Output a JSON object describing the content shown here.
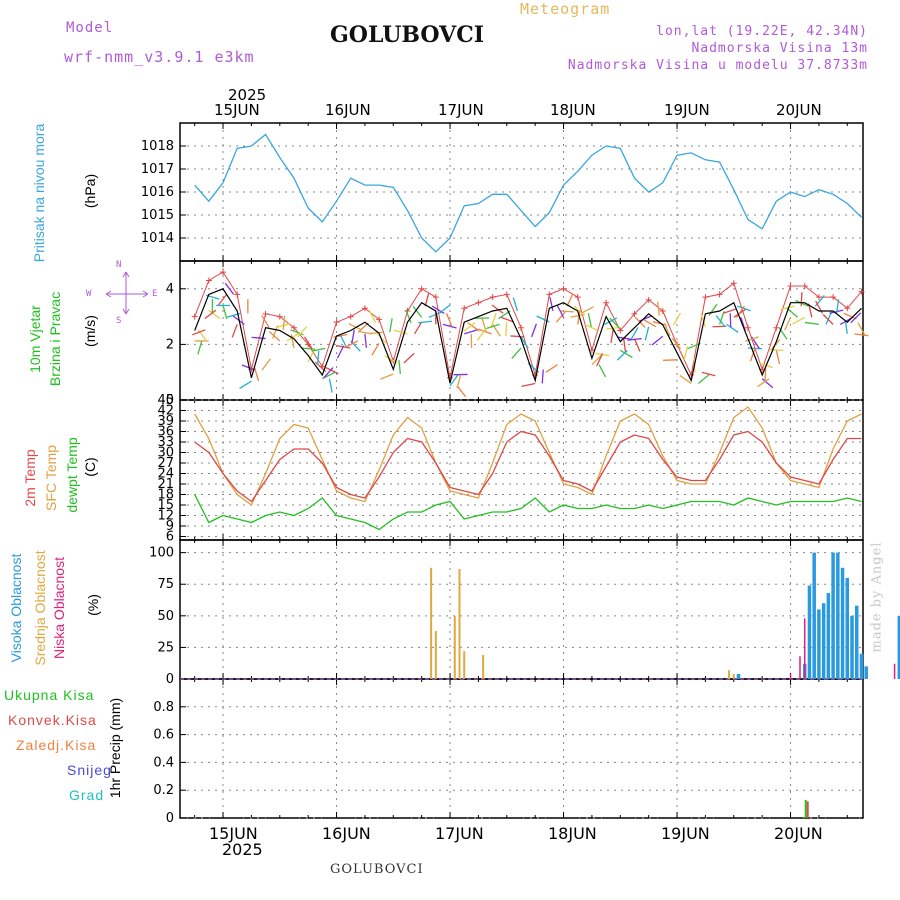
{
  "header": {
    "model_label": "Model",
    "model_name": "wrf-nmm_v3.9.1 e3km",
    "title": "GOLUBOVCI",
    "meteogram_label": "Meteogram",
    "coords": "lon,lat (19.22E, 42.34N)",
    "altitude": "Nadmorska Visina 13m",
    "model_altitude": "Nadmorska Visina u modelu 37.8733m"
  },
  "footer": {
    "station": "GOLUBOVCI",
    "watermark": "made by Angel"
  },
  "time_axis": {
    "year": "2025",
    "days": [
      "15JUN",
      "16JUN",
      "17JUN",
      "18JUN",
      "19JUN",
      "20JUN"
    ]
  },
  "panel_labels": {
    "pressure": {
      "name": "Pritisak na nivou mora",
      "unit": "(hPa)"
    },
    "wind": {
      "line1": "10m Vjetar",
      "line2": "Brzina i Pravac",
      "unit": "(m/s)",
      "compass_n": "N",
      "compass_w": "W",
      "compass_e": "E",
      "compass_s": "S"
    },
    "temp": {
      "line1": "2m Temp",
      "line2": "SFC Temp",
      "line3": "dewpt Temp",
      "unit": "(C)"
    },
    "cloud": {
      "line1": "Visoka Oblacnost",
      "line2": "Srednja Oblacnost",
      "line3": "Niska Oblacnost",
      "unit": "(%)"
    },
    "precip": {
      "l1": "Ukupna Kisa",
      "l2": "Konvek.Kisa",
      "l3": "Zaledj.Kisa",
      "l4": "Snijeg",
      "l5": "Grad",
      "unit": "1hr Precip (mm)"
    }
  },
  "colors": {
    "pressure": "#3aa6e0",
    "wind_speed": "#000000",
    "gust": "#e04848",
    "temp2m": "#e04848",
    "sfc": "#e0a040",
    "dew": "#20c020",
    "cloud_high": "#2a9ae0",
    "cloud_mid": "#e0a840",
    "cloud_low": "#e0207a",
    "precip_total": "#20c020",
    "precip_conv": "#e04848",
    "precip_freeze": "#f08040",
    "precip_snow": "#4848e0",
    "precip_hail": "#20c0c0"
  },
  "chart_data": [
    {
      "type": "line",
      "title": "Pritisak na nivou mora",
      "ylabel": "(hPa)",
      "ylim": [
        1013,
        1019
      ],
      "yticks": [
        1014,
        1015,
        1016,
        1017,
        1018
      ],
      "xlim_days": [
        0,
        6
      ],
      "x_day_offset_hours": [
        0,
        3,
        6,
        9,
        12,
        15,
        18,
        21,
        24,
        27,
        30,
        33,
        36,
        39,
        42,
        45,
        48,
        51,
        54,
        57,
        60,
        63,
        66,
        69,
        72,
        75,
        78,
        81,
        84,
        87,
        90,
        93,
        96,
        99,
        102,
        105,
        108,
        111,
        114,
        117,
        120,
        123,
        126,
        129,
        132,
        135,
        138,
        141
      ],
      "series": [
        {
          "name": "pressure",
          "values": [
            1016.3,
            1015.6,
            1016.4,
            1017.9,
            1018.0,
            1018.5,
            1017.5,
            1016.6,
            1015.3,
            1014.7,
            1015.6,
            1016.6,
            1016.3,
            1016.3,
            1016.2,
            1015.2,
            1014.0,
            1013.4,
            1014.0,
            1015.4,
            1015.5,
            1015.9,
            1015.9,
            1015.2,
            1014.5,
            1015.1,
            1016.3,
            1016.9,
            1017.6,
            1018.0,
            1017.9,
            1016.6,
            1016.0,
            1016.4,
            1017.6,
            1017.7,
            1017.4,
            1017.3,
            1016.1,
            1014.8,
            1014.4,
            1015.6,
            1016.0,
            1015.8,
            1016.1,
            1015.9,
            1015.5,
            1014.9
          ]
        }
      ]
    },
    {
      "type": "line",
      "title": "10m Vjetar Brzina i Pravac",
      "ylabel": "(m/s)",
      "ylim": [
        0,
        5
      ],
      "yticks": [
        0,
        2,
        4
      ],
      "series": [
        {
          "name": "wind speed",
          "values": [
            2.5,
            3.8,
            4.0,
            3.2,
            0.8,
            2.6,
            2.5,
            2.2,
            1.6,
            0.9,
            2.3,
            2.5,
            2.8,
            2.4,
            1.1,
            2.8,
            3.5,
            3.2,
            0.6,
            2.8,
            3.0,
            3.2,
            3.3,
            2.2,
            0.7,
            3.3,
            3.5,
            3.2,
            1.5,
            3.0,
            2.1,
            2.6,
            3.1,
            2.7,
            1.7,
            0.7,
            3.1,
            3.2,
            3.5,
            2.2,
            0.9,
            2.1,
            3.5,
            3.5,
            3.2,
            3.2,
            2.8,
            3.3
          ]
        },
        {
          "name": "gust",
          "values": [
            3.0,
            4.3,
            4.6,
            3.8,
            1.1,
            3.1,
            3.0,
            2.6,
            2.0,
            1.2,
            2.8,
            3.0,
            3.3,
            2.9,
            1.4,
            3.2,
            4.0,
            3.7,
            0.8,
            3.3,
            3.5,
            3.7,
            3.8,
            2.6,
            0.9,
            3.8,
            4.0,
            3.7,
            1.8,
            3.5,
            2.5,
            3.1,
            3.6,
            3.2,
            2.0,
            0.9,
            3.7,
            3.8,
            4.2,
            2.6,
            1.1,
            2.6,
            4.1,
            4.1,
            3.7,
            3.7,
            3.3,
            3.9
          ]
        }
      ]
    },
    {
      "type": "line",
      "title": "2m Temp / SFC Temp / dewpt Temp",
      "ylabel": "(C)",
      "ylim": [
        5,
        45
      ],
      "yticks": [
        6,
        9,
        12,
        15,
        18,
        21,
        24,
        27,
        30,
        33,
        36,
        39,
        42,
        45
      ],
      "series": [
        {
          "name": "2m Temp",
          "values": [
            33,
            30,
            24,
            19,
            16,
            22,
            28,
            31,
            31,
            27,
            20,
            18,
            17,
            23,
            30,
            34,
            33,
            27,
            20,
            19,
            18,
            24,
            33,
            36,
            35,
            29,
            22,
            21,
            19,
            26,
            33,
            35,
            34,
            28,
            23,
            22,
            22,
            28,
            35,
            36,
            33,
            27,
            23,
            22,
            21,
            28,
            34,
            34
          ]
        },
        {
          "name": "SFC Temp",
          "values": [
            41,
            34,
            24,
            18,
            15,
            24,
            34,
            38,
            37,
            28,
            19,
            17,
            16,
            25,
            35,
            40,
            37,
            27,
            19,
            18,
            17,
            27,
            38,
            41,
            39,
            30,
            21,
            20,
            18,
            29,
            39,
            41,
            38,
            29,
            22,
            21,
            21,
            30,
            40,
            43,
            37,
            27,
            22,
            21,
            20,
            31,
            39,
            41
          ]
        },
        {
          "name": "dewpt Temp",
          "values": [
            18,
            10,
            12,
            11,
            10,
            12,
            13,
            12,
            14,
            17,
            12,
            11,
            10,
            8,
            11,
            13,
            13,
            15,
            16,
            11,
            12,
            13,
            13,
            14,
            17,
            13,
            15,
            14,
            14,
            15,
            14,
            14,
            15,
            14,
            15,
            16,
            16,
            16,
            15,
            17,
            16,
            15,
            16,
            16,
            16,
            16,
            17,
            16
          ]
        }
      ]
    },
    {
      "type": "bar",
      "title": "Oblacnost",
      "ylabel": "(%)",
      "ylim": [
        0,
        110
      ],
      "yticks": [
        0,
        25,
        50,
        75,
        100
      ],
      "series": [
        {
          "name": "Srednja Oblacnost",
          "hours": [
            44,
            45,
            49,
            50,
            51,
            55,
            107,
            108
          ],
          "values": [
            88,
            38,
            50,
            87,
            22,
            19,
            7,
            4
          ]
        },
        {
          "name": "Visoka Oblacnost",
          "hours": [
            109,
            123,
            124,
            125,
            126,
            127,
            128,
            129,
            130,
            131,
            132,
            133,
            134,
            135,
            136,
            143
          ],
          "values": [
            4,
            12,
            74,
            100,
            55,
            60,
            68,
            100,
            100,
            88,
            80,
            50,
            58,
            20,
            10,
            50
          ]
        },
        {
          "name": "Niska Oblacnost",
          "hours": [
            120,
            122,
            123,
            142
          ],
          "values": [
            4,
            18,
            48,
            12
          ]
        }
      ]
    },
    {
      "type": "bar",
      "title": "1hr Precip",
      "ylabel": "1hr Precip (mm)",
      "ylim": [
        0,
        1
      ],
      "yticks": [
        0,
        0.2,
        0.4,
        0.6,
        0.8
      ],
      "series": [
        {
          "name": "Ukupna Kisa",
          "hours": [
            123
          ],
          "values": [
            0.13
          ]
        },
        {
          "name": "Konvek.Kisa",
          "hours": [
            123
          ],
          "values": [
            0.12
          ]
        }
      ]
    }
  ]
}
